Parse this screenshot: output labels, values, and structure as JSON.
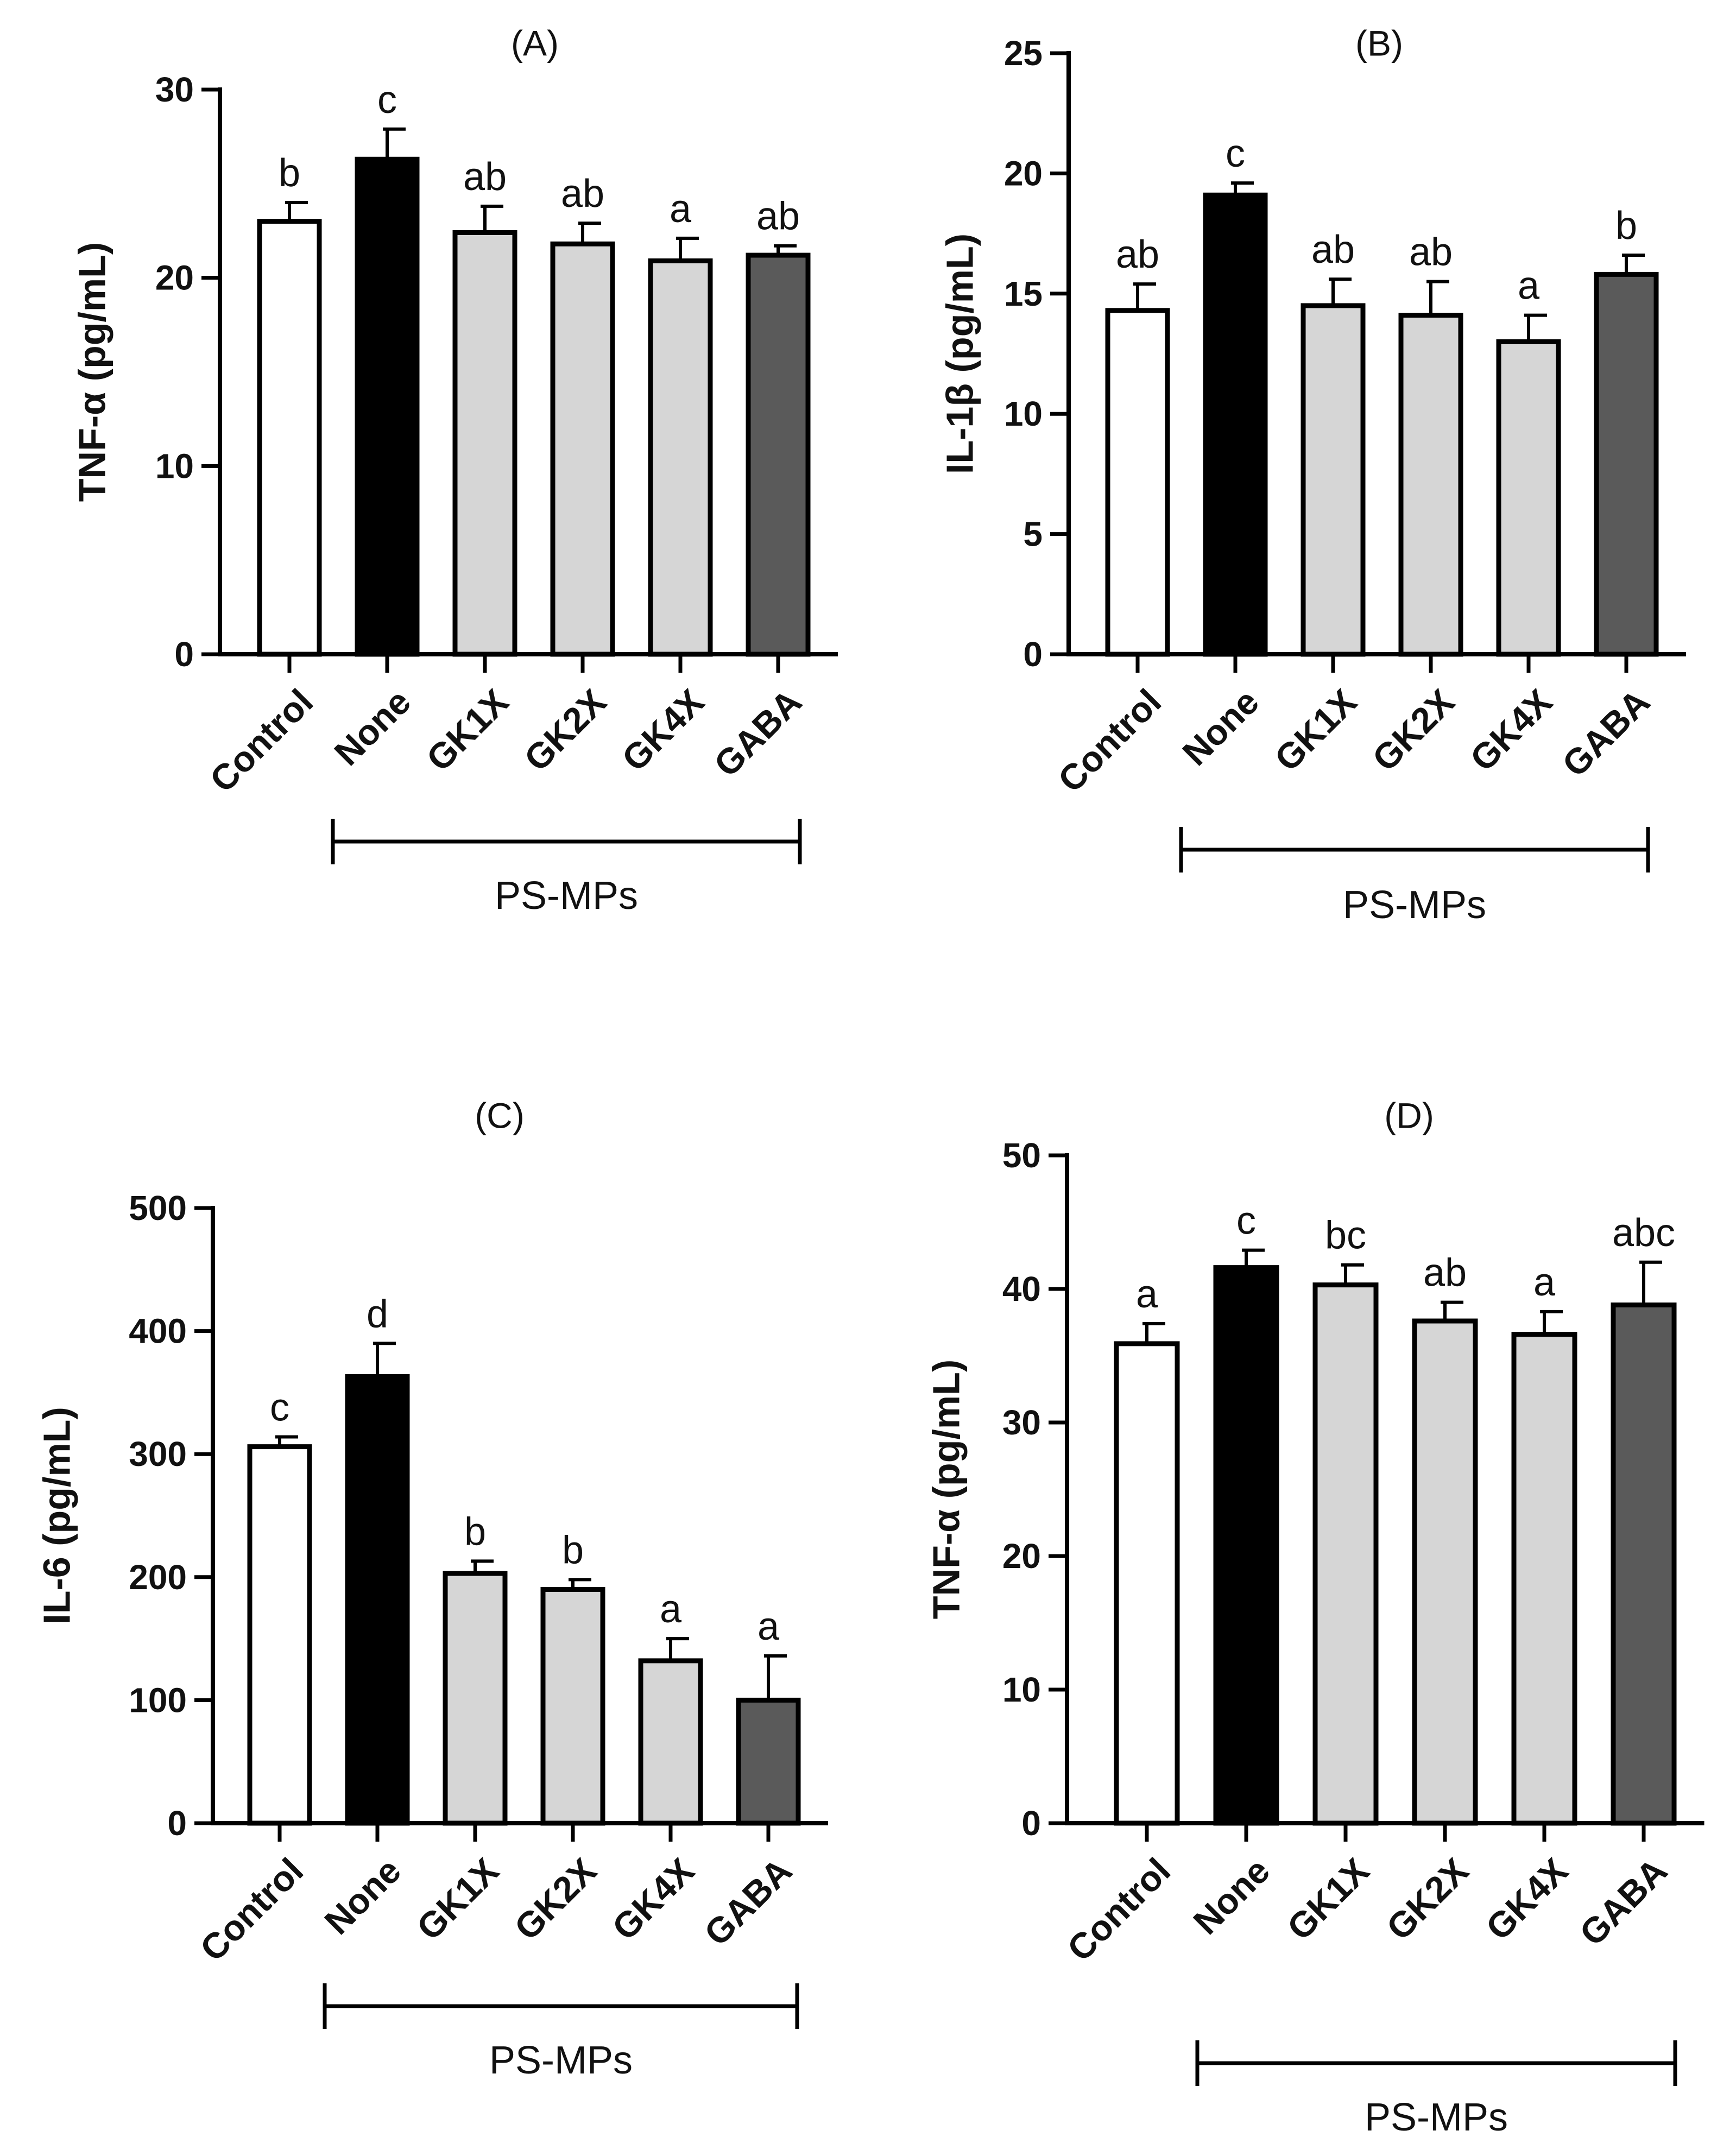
{
  "chart_data": [
    {
      "id": "A",
      "type": "bar",
      "title": "(A)",
      "ylabel": "TNF-α (pg/mL)",
      "xlabel": "",
      "ylim": [
        0,
        30
      ],
      "yticks": [
        0,
        10,
        20,
        30
      ],
      "categories": [
        "Control",
        "None",
        "GK1X",
        "GK2X",
        "GK4X",
        "GABA"
      ],
      "values": [
        23.0,
        26.3,
        22.4,
        21.8,
        20.9,
        21.2
      ],
      "errors": [
        1.0,
        1.6,
        1.4,
        1.1,
        1.2,
        0.5
      ],
      "significance": [
        "b",
        "c",
        "ab",
        "ab",
        "a",
        "ab"
      ],
      "group_bracket": {
        "label": "PS-MPs",
        "from": "None",
        "to": "GABA"
      }
    },
    {
      "id": "B",
      "type": "bar",
      "title": "(B)",
      "ylabel": "IL-1β (pg/mL)",
      "xlabel": "",
      "ylim": [
        0,
        25
      ],
      "yticks": [
        0,
        5,
        10,
        15,
        20,
        25
      ],
      "categories": [
        "Control",
        "None",
        "GK1X",
        "GK2X",
        "GK4X",
        "GABA"
      ],
      "values": [
        14.3,
        19.1,
        14.5,
        14.1,
        13.0,
        15.8
      ],
      "errors": [
        1.1,
        0.5,
        1.1,
        1.4,
        1.1,
        0.8
      ],
      "significance": [
        "ab",
        "c",
        "ab",
        "ab",
        "a",
        "b"
      ],
      "group_bracket": {
        "label": "PS-MPs",
        "from": "None",
        "to": "GABA"
      }
    },
    {
      "id": "C",
      "type": "bar",
      "title": "(C)",
      "ylabel": "IL-6 (pg/mL)",
      "xlabel": "",
      "ylim": [
        0,
        500
      ],
      "yticks": [
        0,
        100,
        200,
        300,
        400,
        500
      ],
      "categories": [
        "Control",
        "None",
        "GK1X",
        "GK2X",
        "GK4X",
        "GABA"
      ],
      "values": [
        306,
        363,
        203,
        190,
        132,
        100
      ],
      "errors": [
        8,
        27,
        10,
        8,
        18,
        36
      ],
      "significance": [
        "c",
        "d",
        "b",
        "b",
        "a",
        "a"
      ],
      "group_bracket": {
        "label": "PS-MPs",
        "from": "None",
        "to": "GABA"
      }
    },
    {
      "id": "D",
      "type": "bar",
      "title": "(D)",
      "ylabel": "TNF-α (pg/mL)",
      "xlabel": "",
      "ylim": [
        0,
        50
      ],
      "yticks": [
        0,
        10,
        20,
        30,
        40,
        50
      ],
      "categories": [
        "Control",
        "None",
        "GK1X",
        "GK2X",
        "GK4X",
        "GABA"
      ],
      "values": [
        35.9,
        41.6,
        40.3,
        37.6,
        36.6,
        38.8
      ],
      "errors": [
        1.5,
        1.3,
        1.5,
        1.4,
        1.7,
        3.2
      ],
      "significance": [
        "a",
        "c",
        "bc",
        "ab",
        "a",
        "abc"
      ],
      "group_bracket": {
        "label": "PS-MPs",
        "from": "None",
        "to": "GABA"
      }
    }
  ],
  "colors": {
    "bars": [
      "#ffffff",
      "#000000",
      "#d6d6d6",
      "#d6d6d6",
      "#d6d6d6",
      "#5a5a5a"
    ],
    "stroke": "#000000",
    "text": "#111111"
  }
}
